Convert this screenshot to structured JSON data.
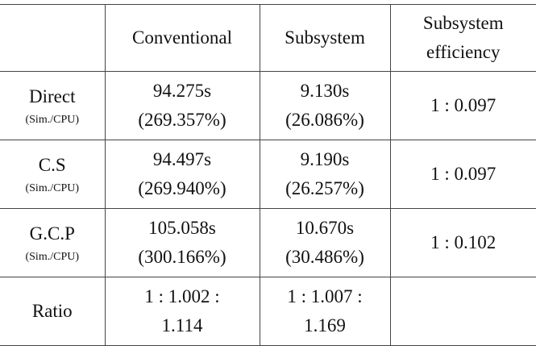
{
  "table": {
    "columns": [
      [
        "Conventional"
      ],
      [
        "Subsystem"
      ],
      [
        "Subsystem",
        "efficiency"
      ]
    ],
    "rows": [
      {
        "label": "Direct",
        "sublabel": "(Sim./CPU)",
        "cells": [
          [
            "94.275s",
            "(269.357%)"
          ],
          [
            "9.130s",
            "(26.086%)"
          ],
          [
            "1 : 0.097"
          ]
        ]
      },
      {
        "label": "C.S",
        "sublabel": "(Sim./CPU)",
        "cells": [
          [
            "94.497s",
            "(269.940%)"
          ],
          [
            "9.190s",
            "(26.257%)"
          ],
          [
            "1 : 0.097"
          ]
        ]
      },
      {
        "label": "G.C.P",
        "sublabel": "(Sim./CPU)",
        "cells": [
          [
            "105.058s",
            "(300.166%)"
          ],
          [
            "10.670s",
            "(30.486%)"
          ],
          [
            "1 : 0.102"
          ]
        ]
      },
      {
        "label": "Ratio",
        "cells": [
          [
            "1 : 1.002 :",
            "1.114"
          ],
          [
            "1 : 1.007 :",
            "1.169"
          ]
        ]
      }
    ]
  }
}
